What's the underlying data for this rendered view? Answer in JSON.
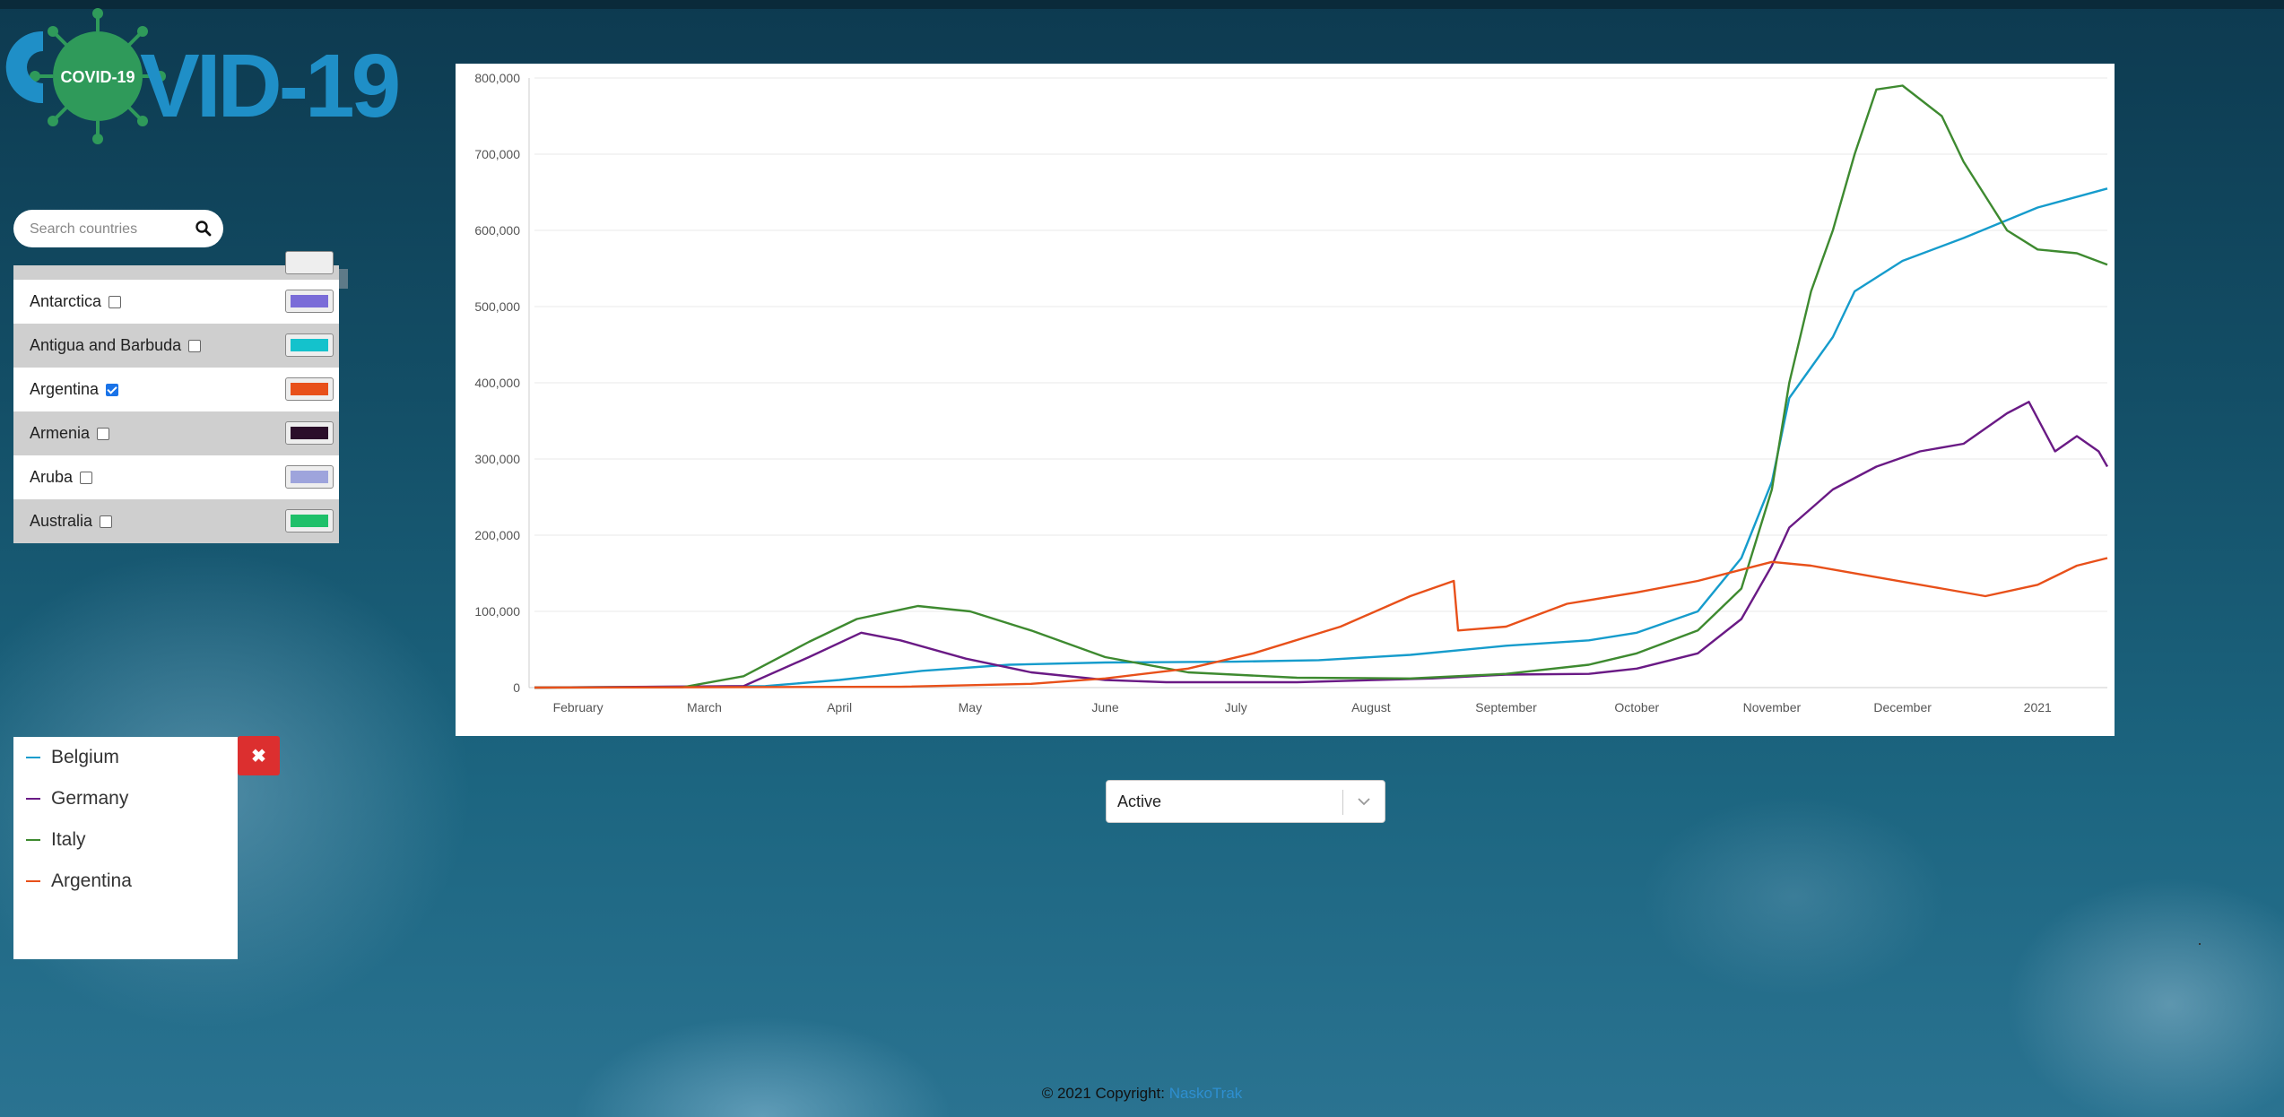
{
  "logo": {
    "text_left": "COVID-19",
    "text_right": "VID-19",
    "color_primary": "#2f9a5a",
    "color_secondary": "#1f8fc7"
  },
  "search": {
    "placeholder": "Search countries",
    "icon": "search-icon"
  },
  "countries": [
    {
      "name": "Antarctica",
      "checked": false,
      "color": "#7a6cd8"
    },
    {
      "name": "Antigua and Barbuda",
      "checked": false,
      "color": "#14c2cc"
    },
    {
      "name": "Argentina",
      "checked": true,
      "color": "#e8501a"
    },
    {
      "name": "Armenia",
      "checked": false,
      "color": "#2b0e2a"
    },
    {
      "name": "Aruba",
      "checked": false,
      "color": "#9ea4dc"
    },
    {
      "name": "Australia",
      "checked": false,
      "color": "#1fc06a"
    }
  ],
  "legend": [
    {
      "name": "Belgium",
      "color": "#169ccc"
    },
    {
      "name": "Germany",
      "color": "#6a1a85"
    },
    {
      "name": "Italy",
      "color": "#3e8a30"
    },
    {
      "name": "Argentina",
      "color": "#e8501a"
    }
  ],
  "close_button": {
    "icon": "close-icon",
    "label": "✖"
  },
  "metric_select": {
    "value": "Active",
    "icon": "chevron-down-icon"
  },
  "footer": {
    "prefix": "© 2021 Copyright: ",
    "link": "NaskoTrak"
  },
  "chart_data": {
    "type": "line",
    "title": "",
    "xlabel": "",
    "ylabel": "",
    "ylim": [
      0,
      800000
    ],
    "yticks": [
      "0",
      "100,000",
      "200,000",
      "300,000",
      "400,000",
      "500,000",
      "600,000",
      "700,000",
      "800,000"
    ],
    "xticks": [
      "February",
      "March",
      "April",
      "May",
      "June",
      "July",
      "August",
      "September",
      "October",
      "November",
      "December",
      "2021"
    ],
    "grid": "horizontal",
    "x_domain": [
      "2020-01-22",
      "2021-01-17"
    ],
    "series": [
      {
        "name": "Belgium",
        "color": "#169ccc",
        "points": [
          [
            "2020-01-22",
            0
          ],
          [
            "2020-03-15",
            2000
          ],
          [
            "2020-04-01",
            10000
          ],
          [
            "2020-04-20",
            22000
          ],
          [
            "2020-05-10",
            30000
          ],
          [
            "2020-06-01",
            33000
          ],
          [
            "2020-07-01",
            34000
          ],
          [
            "2020-07-20",
            36000
          ],
          [
            "2020-08-10",
            43000
          ],
          [
            "2020-09-01",
            55000
          ],
          [
            "2020-09-20",
            62000
          ],
          [
            "2020-10-01",
            72000
          ],
          [
            "2020-10-15",
            100000
          ],
          [
            "2020-10-25",
            170000
          ],
          [
            "2020-11-01",
            270000
          ],
          [
            "2020-11-05",
            380000
          ],
          [
            "2020-11-10",
            420000
          ],
          [
            "2020-11-15",
            460000
          ],
          [
            "2020-11-20",
            520000
          ],
          [
            "2020-12-01",
            560000
          ],
          [
            "2020-12-15",
            590000
          ],
          [
            "2021-01-01",
            630000
          ],
          [
            "2021-01-17",
            655000
          ]
        ]
      },
      {
        "name": "Germany",
        "color": "#6a1a85",
        "points": [
          [
            "2020-01-22",
            0
          ],
          [
            "2020-03-10",
            2000
          ],
          [
            "2020-03-25",
            40000
          ],
          [
            "2020-04-06",
            72000
          ],
          [
            "2020-04-15",
            62000
          ],
          [
            "2020-04-30",
            38000
          ],
          [
            "2020-05-15",
            20000
          ],
          [
            "2020-06-01",
            10000
          ],
          [
            "2020-06-15",
            7000
          ],
          [
            "2020-07-15",
            7000
          ],
          [
            "2020-08-15",
            12000
          ],
          [
            "2020-09-01",
            17000
          ],
          [
            "2020-09-20",
            18000
          ],
          [
            "2020-10-01",
            25000
          ],
          [
            "2020-10-15",
            45000
          ],
          [
            "2020-10-25",
            90000
          ],
          [
            "2020-11-01",
            160000
          ],
          [
            "2020-11-05",
            210000
          ],
          [
            "2020-11-15",
            260000
          ],
          [
            "2020-11-25",
            290000
          ],
          [
            "2020-12-05",
            310000
          ],
          [
            "2020-12-15",
            320000
          ],
          [
            "2020-12-25",
            360000
          ],
          [
            "2020-12-30",
            375000
          ],
          [
            "2021-01-05",
            310000
          ],
          [
            "2021-01-10",
            330000
          ],
          [
            "2021-01-15",
            310000
          ],
          [
            "2021-01-17",
            290000
          ]
        ]
      },
      {
        "name": "Italy",
        "color": "#3e8a30",
        "points": [
          [
            "2020-01-22",
            0
          ],
          [
            "2020-02-25",
            500
          ],
          [
            "2020-03-10",
            15000
          ],
          [
            "2020-03-25",
            60000
          ],
          [
            "2020-04-05",
            90000
          ],
          [
            "2020-04-19",
            107000
          ],
          [
            "2020-05-01",
            100000
          ],
          [
            "2020-05-15",
            75000
          ],
          [
            "2020-06-01",
            40000
          ],
          [
            "2020-06-20",
            20000
          ],
          [
            "2020-07-15",
            13000
          ],
          [
            "2020-08-10",
            12000
          ],
          [
            "2020-09-01",
            18000
          ],
          [
            "2020-09-20",
            30000
          ],
          [
            "2020-10-01",
            45000
          ],
          [
            "2020-10-15",
            75000
          ],
          [
            "2020-10-25",
            130000
          ],
          [
            "2020-11-01",
            260000
          ],
          [
            "2020-11-05",
            400000
          ],
          [
            "2020-11-10",
            520000
          ],
          [
            "2020-11-15",
            600000
          ],
          [
            "2020-11-20",
            700000
          ],
          [
            "2020-11-25",
            785000
          ],
          [
            "2020-12-01",
            790000
          ],
          [
            "2020-12-10",
            750000
          ],
          [
            "2020-12-15",
            690000
          ],
          [
            "2020-12-25",
            600000
          ],
          [
            "2021-01-01",
            575000
          ],
          [
            "2021-01-10",
            570000
          ],
          [
            "2021-01-17",
            555000
          ]
        ]
      },
      {
        "name": "Argentina",
        "color": "#e8501a",
        "points": [
          [
            "2020-01-22",
            0
          ],
          [
            "2020-04-15",
            1000
          ],
          [
            "2020-05-15",
            5000
          ],
          [
            "2020-06-01",
            12000
          ],
          [
            "2020-06-20",
            25000
          ],
          [
            "2020-07-05",
            45000
          ],
          [
            "2020-07-25",
            80000
          ],
          [
            "2020-08-10",
            120000
          ],
          [
            "2020-08-20",
            140000
          ],
          [
            "2020-08-21",
            75000
          ],
          [
            "2020-09-01",
            80000
          ],
          [
            "2020-09-15",
            110000
          ],
          [
            "2020-10-01",
            125000
          ],
          [
            "2020-10-15",
            140000
          ],
          [
            "2020-11-01",
            165000
          ],
          [
            "2020-11-10",
            160000
          ],
          [
            "2020-11-25",
            145000
          ],
          [
            "2020-12-10",
            130000
          ],
          [
            "2020-12-20",
            120000
          ],
          [
            "2021-01-01",
            135000
          ],
          [
            "2021-01-10",
            160000
          ],
          [
            "2021-01-17",
            170000
          ]
        ]
      }
    ]
  }
}
